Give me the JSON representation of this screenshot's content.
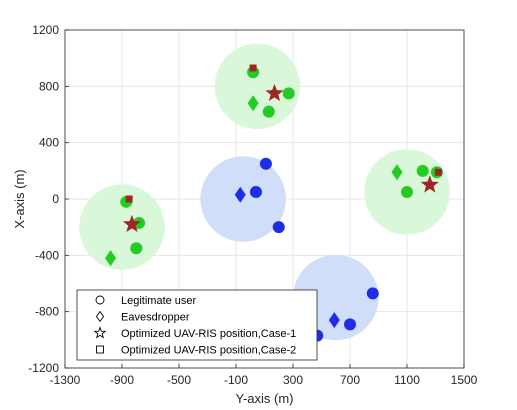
{
  "chart_data": {
    "type": "scatter",
    "xlabel": "Y-axis (m)",
    "ylabel": "X-axis (m)",
    "xlim": [
      -1300,
      1500
    ],
    "ylim": [
      -1200,
      1200
    ],
    "xticks": [
      "-1300",
      "-900",
      "-500",
      "-100",
      "300",
      "700",
      "1100",
      "1500"
    ],
    "yticks": [
      "-1200",
      "-800",
      "-400",
      "0",
      "400",
      "800",
      "1200"
    ],
    "grid": true,
    "legend_position": "bottom-left",
    "legend": [
      {
        "label": "Legitimate user",
        "marker": "circle"
      },
      {
        "label": "Eavesdropper",
        "marker": "diamond"
      },
      {
        "label": "Optimized UAV-RIS position,Case-1",
        "marker": "star"
      },
      {
        "label": "Optimized UAV-RIS position,Case-2",
        "marker": "square"
      }
    ],
    "regions": [
      {
        "center": [
          -900,
          -200
        ],
        "radius": 300,
        "color": "#d9f7d9"
      },
      {
        "center": [
          50,
          800
        ],
        "radius": 300,
        "color": "#d9f7d9"
      },
      {
        "center": [
          1100,
          50
        ],
        "radius": 300,
        "color": "#d9f7d9"
      },
      {
        "center": [
          -50,
          0
        ],
        "radius": 300,
        "color": "#d0defa"
      },
      {
        "center": [
          600,
          -700
        ],
        "radius": 300,
        "color": "#d0defa"
      }
    ],
    "legitimate_users": [
      {
        "x": -870,
        "y": -20,
        "color": "#22cc22"
      },
      {
        "x": -780,
        "y": -170,
        "color": "#22cc22"
      },
      {
        "x": -800,
        "y": -350,
        "color": "#22cc22"
      },
      {
        "x": 20,
        "y": 900,
        "color": "#22cc22"
      },
      {
        "x": 130,
        "y": 620,
        "color": "#22cc22"
      },
      {
        "x": 270,
        "y": 750,
        "color": "#22cc22"
      },
      {
        "x": 1100,
        "y": 50,
        "color": "#22cc22"
      },
      {
        "x": 1210,
        "y": 200,
        "color": "#22cc22"
      },
      {
        "x": 1310,
        "y": 190,
        "color": "#22cc22"
      },
      {
        "x": 110,
        "y": 250,
        "color": "#1f2ee6"
      },
      {
        "x": 40,
        "y": 50,
        "color": "#1f2ee6"
      },
      {
        "x": 200,
        "y": -200,
        "color": "#1f2ee6"
      },
      {
        "x": 860,
        "y": -670,
        "color": "#1f2ee6"
      },
      {
        "x": 700,
        "y": -890,
        "color": "#1f2ee6"
      },
      {
        "x": 470,
        "y": -970,
        "color": "#1f2ee6"
      }
    ],
    "eavesdroppers": [
      {
        "x": -980,
        "y": -420,
        "color": "#22cc22"
      },
      {
        "x": 20,
        "y": 680,
        "color": "#22cc22"
      },
      {
        "x": 1030,
        "y": 190,
        "color": "#22cc22"
      },
      {
        "x": -70,
        "y": 30,
        "color": "#1f2ee6"
      },
      {
        "x": 590,
        "y": -860,
        "color": "#1f2ee6"
      }
    ],
    "uav_ris_case1": [
      {
        "x": -830,
        "y": -180
      },
      {
        "x": 170,
        "y": 750
      },
      {
        "x": 1260,
        "y": 100
      }
    ],
    "uav_ris_case2": [
      {
        "x": -850,
        "y": 0
      },
      {
        "x": 20,
        "y": 930
      },
      {
        "x": 1320,
        "y": 190
      }
    ],
    "uav_marker_color": "#a02626"
  }
}
